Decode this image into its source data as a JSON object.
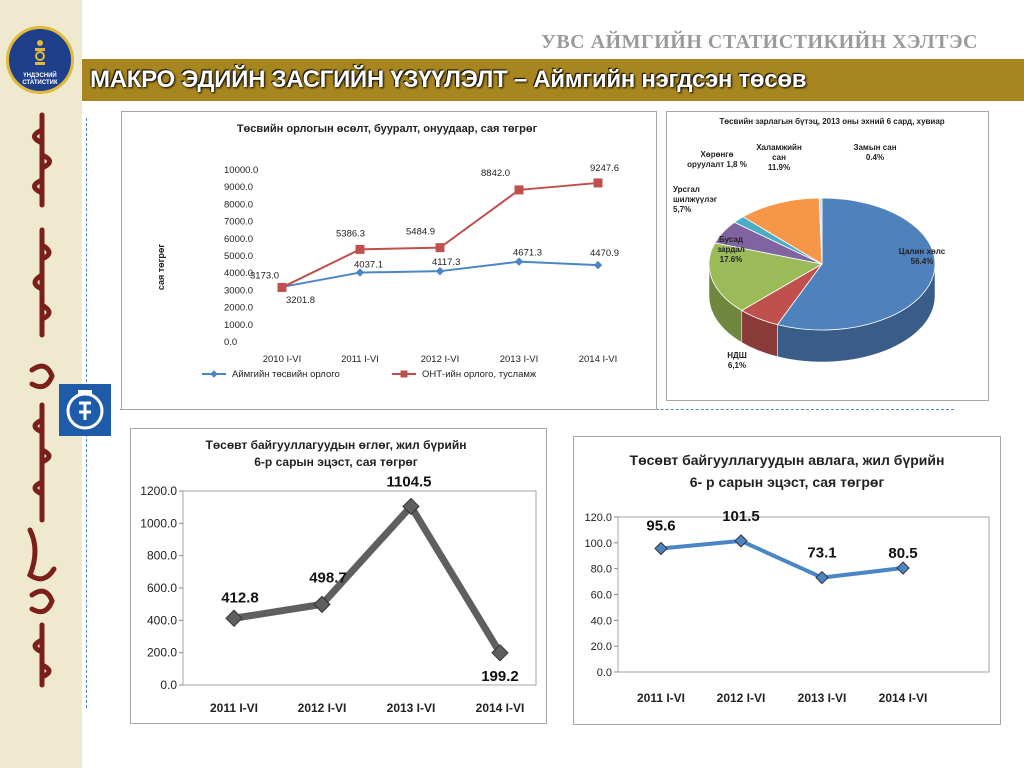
{
  "header": {
    "org_title": "УВС АЙМГИЙН СТАТИСТИКИЙН ХЭЛТЭС",
    "banner_title": "МАКРО ЭДИЙН ЗАСГИЙН ҮЗҮҮЛЭЛТ – Аймгийн нэгдсэн төсөв",
    "logo_line1": "ҮНДЭСНИЙ",
    "logo_line2": "СТАТИСТИК"
  },
  "colors": {
    "banner": "#a8861f",
    "left_strip": "#efe9cf",
    "accent_blue": "#1e5ba8",
    "series_blue": "#4a86c5",
    "series_red": "#c0504d",
    "series_gray": "#5f5f5f"
  },
  "chart_data": [
    {
      "id": "c1",
      "type": "line",
      "title": "Төсвийн орлогын өсөлт, бууралт, онуудаар, сая төгрөг",
      "ylabel": "сая төгрөг",
      "xlabel": "",
      "categories": [
        "2010 I-VI",
        "2011 I-VI",
        "2012 I-VI",
        "2013 I-VI",
        "2014 I-VI"
      ],
      "ylim": [
        0,
        10000
      ],
      "yticks": [
        "10000.0",
        "9000.0",
        "8000.0",
        "7000.0",
        "6000.0",
        "5000.0",
        "4000.0",
        "3000.0",
        "2000.0",
        "1000.0",
        "0.0"
      ],
      "series": [
        {
          "name": "Аймгийн төсвийн орлого",
          "color": "#4a86c5",
          "marker": "diamond",
          "values": [
            3201.8,
            4037.1,
            4117.3,
            4671.3,
            4470.9
          ],
          "labels": [
            "3201.8",
            "4037.1",
            "4117.3",
            "4671.3",
            "4470.9"
          ]
        },
        {
          "name": "ОНТ-ийн орлого, тусламж",
          "color": "#c0504d",
          "marker": "square",
          "values": [
            3173.0,
            5386.3,
            5484.9,
            8842.0,
            9247.6
          ],
          "labels": [
            "3173.0",
            "5386.3",
            "5484.9",
            "8842.0",
            "9247.6"
          ]
        }
      ],
      "legend": "bottom",
      "grid": false
    },
    {
      "id": "c2",
      "type": "pie",
      "title": "Төсвийн зарлагын бүтэц, 2013 оны эхний 6 сард, хувиар",
      "slices": [
        {
          "name": "Цалин хөлс",
          "value": 56.4,
          "label": "56.4%",
          "color": "#4f81bd"
        },
        {
          "name": "НДШ",
          "value": 6.1,
          "label": "6,1%",
          "color": "#c0504d"
        },
        {
          "name": "Бусад зардал",
          "value": 17.6,
          "label": "17.6%",
          "color": "#9bbb59"
        },
        {
          "name": "Урсгал шилжүүлэг",
          "value": 5.7,
          "label": "5,7%",
          "color": "#8064a2"
        },
        {
          "name": "Хөрөнгө оруулалт",
          "value": 1.8,
          "label": "1,8 %",
          "color": "#4bacc6"
        },
        {
          "name": "Халамжийн сан",
          "value": 11.9,
          "label": "11.9%",
          "color": "#f79646"
        },
        {
          "name": "Замын сан",
          "value": 0.4,
          "label": "0.4%",
          "color": "#c6d9f1"
        }
      ]
    },
    {
      "id": "c3",
      "type": "line",
      "title_line1": "Төсөвт байгууллагуудын өглөг, жил бүрийн",
      "title_line2": "6-р сарын эцэст, сая төгрөг",
      "categories": [
        "2011 I-VI",
        "2012 I-VI",
        "2013 I-VI",
        "2014 I-VI"
      ],
      "ylim": [
        0,
        1200
      ],
      "yticks": [
        "1200.0",
        "1000.0",
        "800.0",
        "600.0",
        "400.0",
        "200.0",
        "0.0"
      ],
      "series": [
        {
          "name": "",
          "color": "#5f5f5f",
          "marker": "diamond",
          "values": [
            412.8,
            498.7,
            1104.5,
            199.2
          ],
          "labels": [
            "412.8",
            "498.7",
            "1104.5",
            "199.2"
          ]
        }
      ]
    },
    {
      "id": "c4",
      "type": "line",
      "title_line1": "Төсөвт байгууллагуудын авлага, жил бүрийн",
      "title_line2": "6- р сарын эцэст, сая төгрөг",
      "categories": [
        "2011 I-VI",
        "2012 I-VI",
        "2013 I-VI",
        "2014 I-VI"
      ],
      "ylim": [
        0,
        120
      ],
      "yticks": [
        "120.0",
        "100.0",
        "80.0",
        "60.0",
        "40.0",
        "20.0",
        "0.0"
      ],
      "series": [
        {
          "name": "",
          "color": "#4a86c5",
          "marker": "diamond",
          "values": [
            95.6,
            101.5,
            73.1,
            80.5
          ],
          "labels": [
            "95.6",
            "101.5",
            "73.1",
            "80.5"
          ]
        }
      ]
    }
  ]
}
